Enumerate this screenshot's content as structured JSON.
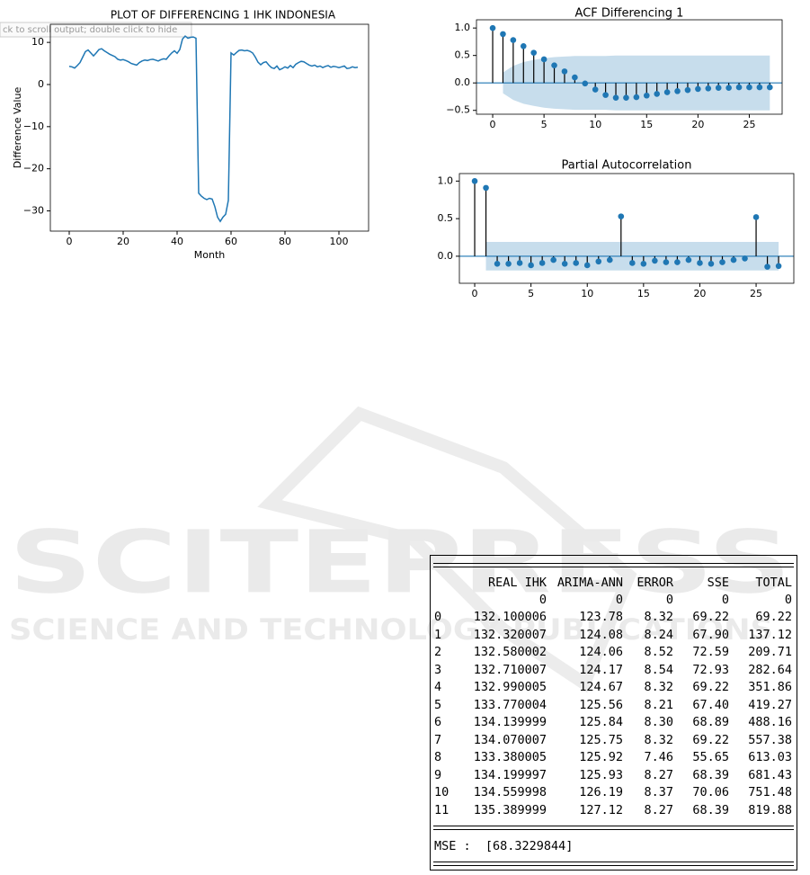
{
  "chart_data": [
    {
      "type": "line",
      "title": "PLOT OF DIFFERENCING 1 IHK INDONESIA",
      "x_label": "Month",
      "y_label": "Difference Value",
      "x": [
        0,
        1,
        2,
        3,
        4,
        5,
        6,
        7,
        8,
        9,
        10,
        11,
        12,
        13,
        14,
        15,
        16,
        17,
        18,
        19,
        20,
        21,
        22,
        23,
        24,
        25,
        26,
        27,
        28,
        29,
        30,
        31,
        32,
        33,
        34,
        35,
        36,
        37,
        38,
        39,
        40,
        41,
        42,
        43,
        44,
        45,
        46,
        47,
        48,
        49,
        50,
        51,
        52,
        53,
        54,
        55,
        56,
        57,
        58,
        59,
        60,
        61,
        62,
        63,
        64,
        65,
        66,
        67,
        68,
        69,
        70,
        71,
        72,
        73,
        74,
        75,
        76,
        77,
        78,
        79,
        80,
        81,
        82,
        83,
        84,
        85,
        86,
        87,
        88,
        89,
        90,
        91,
        92,
        93,
        94,
        95,
        96,
        97,
        98,
        99,
        100,
        101,
        102,
        103,
        104,
        105,
        106,
        107
      ],
      "values": [
        4.3,
        4.2,
        3.9,
        4.5,
        5.2,
        6.5,
        7.8,
        8.2,
        7.5,
        6.8,
        7.5,
        8.3,
        8.5,
        8.0,
        7.6,
        7.2,
        6.9,
        6.6,
        6.0,
        5.8,
        5.9,
        5.7,
        5.4,
        5.0,
        4.8,
        4.6,
        5.2,
        5.6,
        5.8,
        5.7,
        5.9,
        6.0,
        5.8,
        5.6,
        5.9,
        6.1,
        6.0,
        6.8,
        7.5,
        8.0,
        7.4,
        8.3,
        10.8,
        11.5,
        11.0,
        11.2,
        11.3,
        11.0,
        -25.8,
        -26.5,
        -27.0,
        -27.3,
        -27.0,
        -27.2,
        -29.0,
        -31.5,
        -32.5,
        -31.5,
        -30.8,
        -27.5,
        7.5,
        7.0,
        7.6,
        8.1,
        8.2,
        8.0,
        8.1,
        7.9,
        7.5,
        6.5,
        5.3,
        4.7,
        5.2,
        5.4,
        4.6,
        4.0,
        3.8,
        4.4,
        3.5,
        3.8,
        4.2,
        3.9,
        4.5,
        4.0,
        4.8,
        5.2,
        5.5,
        5.4,
        5.0,
        4.6,
        4.4,
        4.6,
        4.2,
        4.4,
        4.0,
        4.3,
        4.5,
        4.1,
        4.3,
        4.2,
        4.0,
        4.2,
        4.4,
        3.8,
        3.9,
        4.2,
        4.0,
        4.1
      ],
      "color": "#1f77b4",
      "xlim": [
        -7,
        111
      ],
      "xticks": [
        0,
        20,
        40,
        60,
        80,
        100
      ],
      "ylim": [
        -34.8,
        14.3
      ],
      "yticks": [
        {
          "value": -30,
          "label": "−30"
        },
        {
          "value": -20,
          "label": "−20"
        },
        {
          "value": -10,
          "label": "−10"
        },
        0,
        10
      ]
    },
    {
      "type": "stem",
      "title": "ACF Differencing 1",
      "x": [
        0,
        1,
        2,
        3,
        4,
        5,
        6,
        7,
        8,
        9,
        10,
        11,
        12,
        13,
        14,
        15,
        16,
        17,
        18,
        19,
        20,
        21,
        22,
        23,
        24,
        25,
        26,
        27
      ],
      "values": [
        1.0,
        0.89,
        0.78,
        0.67,
        0.55,
        0.43,
        0.32,
        0.21,
        0.1,
        -0.01,
        -0.12,
        -0.22,
        -0.27,
        -0.27,
        -0.26,
        -0.23,
        -0.2,
        -0.17,
        -0.15,
        -0.13,
        -0.11,
        -0.1,
        -0.09,
        -0.09,
        -0.08,
        -0.08,
        -0.08,
        -0.08
      ],
      "confidence_band": [
        null,
        0.19,
        0.31,
        0.38,
        0.42,
        0.45,
        0.47,
        0.48,
        0.49,
        0.49,
        0.49,
        0.49,
        0.5,
        0.5,
        0.5,
        0.5,
        0.5,
        0.5,
        0.5,
        0.5,
        0.5,
        0.5,
        0.5,
        0.5,
        0.5,
        0.5,
        0.5,
        0.5
      ],
      "color": "#1f77b4",
      "band_color": "#1f77b4",
      "xlim": [
        -1.58,
        28.2
      ],
      "xticks": [
        0,
        5,
        10,
        15,
        20,
        25
      ],
      "ylim": [
        -0.57,
        1.15
      ],
      "yticks": [
        {
          "value": -0.5,
          "label": "−0.5"
        },
        {
          "value": 0,
          "label": "0.0"
        },
        0.5,
        {
          "value": 1,
          "label": "1.0"
        }
      ]
    },
    {
      "type": "stem",
      "title": "Partial Autocorrelation",
      "x": [
        0,
        1,
        2,
        3,
        4,
        5,
        6,
        7,
        8,
        9,
        10,
        11,
        12,
        13,
        14,
        15,
        16,
        17,
        18,
        19,
        20,
        21,
        22,
        23,
        24,
        25,
        26,
        27
      ],
      "values": [
        1.0,
        0.91,
        -0.1,
        -0.1,
        -0.09,
        -0.12,
        -0.09,
        -0.05,
        -0.1,
        -0.09,
        -0.12,
        -0.07,
        -0.05,
        0.53,
        -0.09,
        -0.1,
        -0.06,
        -0.08,
        -0.08,
        -0.05,
        -0.09,
        -0.1,
        -0.08,
        -0.05,
        -0.03,
        0.52,
        -0.14,
        -0.13
      ],
      "confidence_band": [
        null,
        0.19,
        0.19,
        0.19,
        0.19,
        0.19,
        0.19,
        0.19,
        0.19,
        0.19,
        0.19,
        0.19,
        0.19,
        0.19,
        0.19,
        0.19,
        0.19,
        0.19,
        0.19,
        0.19,
        0.19,
        0.19,
        0.19,
        0.19,
        0.19,
        0.19,
        0.19,
        0.19
      ],
      "color": "#1f77b4",
      "band_color": "#1f77b4",
      "xlim": [
        -1.36,
        28.35
      ],
      "xticks": [
        0,
        5,
        10,
        15,
        20,
        25
      ],
      "ylim": [
        -0.36,
        1.1
      ],
      "yticks": [
        {
          "value": 0,
          "label": "0.0"
        },
        0.5,
        {
          "value": 1,
          "label": "1.0"
        }
      ]
    }
  ],
  "tooltip": "ck to scroll output; double click to hide",
  "watermark": {
    "title": "SCITEPRESS",
    "subtitle": "SCIENCE AND TECHNOLOGY PUBLICATIONS"
  },
  "table": {
    "header": [
      "REAL IHK",
      "ARIMA-ANN",
      "ERROR",
      "SSE",
      "TOTAL"
    ],
    "subheader": [
      "0",
      "0",
      "0",
      "0",
      "0"
    ],
    "rows": [
      [
        "0",
        "132.100006",
        "123.78",
        "8.32",
        "69.22",
        "69.22"
      ],
      [
        "1",
        "132.320007",
        "124.08",
        "8.24",
        "67.90",
        "137.12"
      ],
      [
        "2",
        "132.580002",
        "124.06",
        "8.52",
        "72.59",
        "209.71"
      ],
      [
        "3",
        "132.710007",
        "124.17",
        "8.54",
        "72.93",
        "282.64"
      ],
      [
        "4",
        "132.990005",
        "124.67",
        "8.32",
        "69.22",
        "351.86"
      ],
      [
        "5",
        "133.770004",
        "125.56",
        "8.21",
        "67.40",
        "419.27"
      ],
      [
        "6",
        "134.139999",
        "125.84",
        "8.30",
        "68.89",
        "488.16"
      ],
      [
        "7",
        "134.070007",
        "125.75",
        "8.32",
        "69.22",
        "557.38"
      ],
      [
        "8",
        "133.380005",
        "125.92",
        "7.46",
        "55.65",
        "613.03"
      ],
      [
        "9",
        "134.199997",
        "125.93",
        "8.27",
        "68.39",
        "681.43"
      ],
      [
        "10",
        "134.559998",
        "126.19",
        "8.37",
        "70.06",
        "751.48"
      ],
      [
        "11",
        "135.389999",
        "127.12",
        "8.27",
        "68.39",
        "819.88"
      ]
    ],
    "mse": "MSE :  [68.3229844]"
  }
}
